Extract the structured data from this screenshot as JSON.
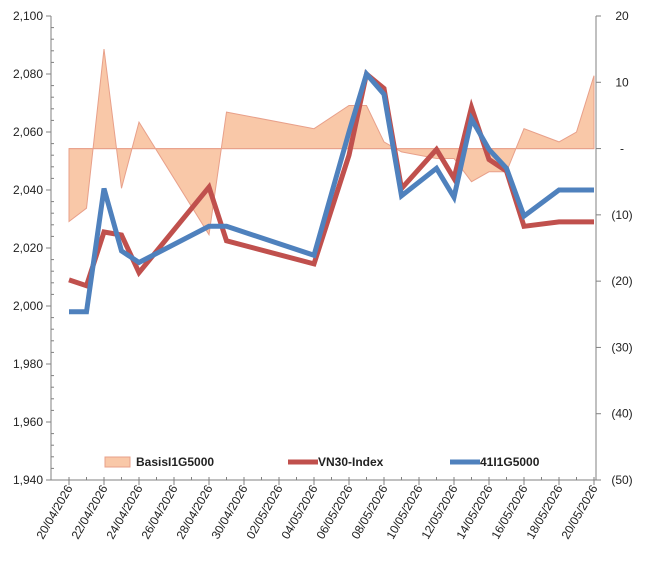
{
  "chart_data": {
    "type": "line",
    "title": "",
    "x": [
      "20/04/2026",
      "21/04/2026",
      "22/04/2026",
      "23/04/2026",
      "24/04/2026",
      "28/04/2026",
      "29/04/2026",
      "04/05/2026",
      "06/05/2026",
      "07/05/2026",
      "08/05/2026",
      "09/05/2026",
      "11/05/2026",
      "12/05/2026",
      "13/05/2026",
      "14/05/2026",
      "15/05/2026",
      "16/05/2026",
      "18/05/2026",
      "19/05/2026",
      "20/05/2026"
    ],
    "x_tick_labels": [
      "20/04/2026",
      "22/04/2026",
      "24/04/2026",
      "26/04/2026",
      "28/04/2026",
      "30/04/2026",
      "02/05/2026",
      "04/05/2026",
      "06/05/2026",
      "08/05/2026",
      "10/05/2026",
      "12/05/2026",
      "14/05/2026",
      "16/05/2026",
      "18/05/2026",
      "20/05/2026"
    ],
    "y_left": {
      "min": 1940,
      "max": 2100,
      "step": 20,
      "tick_labels": [
        "1,940",
        "1,960",
        "1,980",
        "2,000",
        "2,020",
        "2,040",
        "2,060",
        "2,080",
        "2,100"
      ]
    },
    "y_right": {
      "min": -50,
      "max": 20,
      "step": 10,
      "tick_labels": [
        "(50)",
        "(40)",
        "(30)",
        "(20)",
        "(10)",
        "-",
        "10",
        "20"
      ]
    },
    "series": [
      {
        "name": "BasisI1G5000",
        "kind": "area",
        "axis": "right",
        "color": "#f9c8a8",
        "edge_color": "#e8a08a",
        "values": [
          -11,
          -9,
          15,
          -6,
          4,
          -13,
          5.5,
          3,
          6.5,
          6.5,
          1,
          -0.5,
          -1.5,
          -1.5,
          -5,
          -3.5,
          -3.5,
          3,
          1,
          2.5,
          11
        ]
      },
      {
        "name": "VN30-Index",
        "kind": "line",
        "axis": "left",
        "color": "#c0504d",
        "values": [
          2009,
          2007,
          2025.5,
          2024.5,
          2011.5,
          2041,
          2022.5,
          2014.5,
          2052,
          2080,
          2075,
          2040.5,
          2054,
          2044,
          2068.5,
          2050.5,
          2046.5,
          2027.5,
          2029,
          2029,
          2029
        ]
      },
      {
        "name": "41I1G5000",
        "kind": "line",
        "axis": "left",
        "color": "#4f81bd",
        "values": [
          1998,
          1998,
          2040.5,
          2019,
          2015,
          2027.5,
          2027.5,
          2017.5,
          2060,
          2080,
          2073,
          2038,
          2047.5,
          2037.5,
          2064.5,
          2054,
          2047.5,
          2031,
          2040,
          2040,
          2040
        ]
      }
    ],
    "legend": {
      "placement": "bottom-inside",
      "entries": [
        "BasisI1G5000",
        "VN30-Index",
        "41I1G5000"
      ]
    },
    "grid": false
  }
}
